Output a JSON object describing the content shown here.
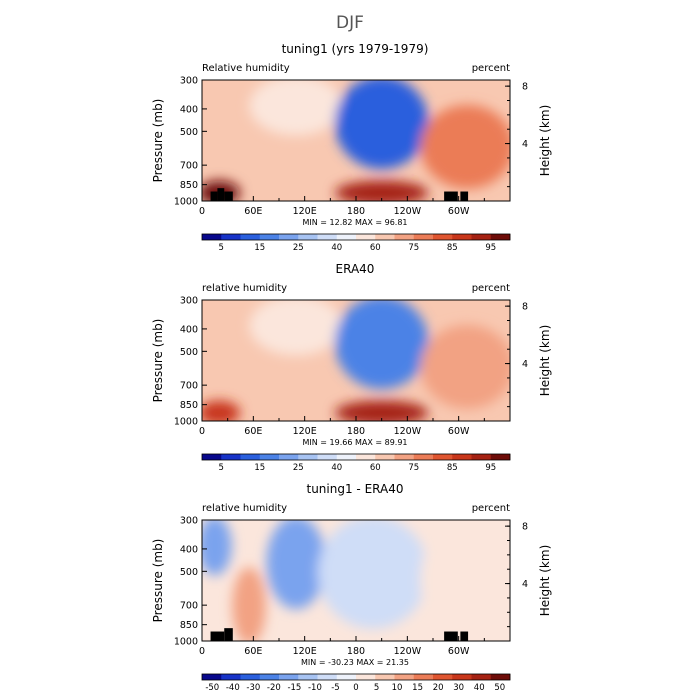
{
  "figure": {
    "title": "DJF"
  },
  "chart_data": [
    {
      "type": "heatmap",
      "title": "tuning1 (yrs 1979-1979)",
      "left_label": "Relative humidity",
      "right_label": "percent",
      "ylabel": "Pressure (mb)",
      "y2label": "Height (km)",
      "xticks": [
        "0",
        "60E",
        "120E",
        "180",
        "120W",
        "60W"
      ],
      "yticks": [
        "300",
        "400",
        "500",
        "700",
        "850",
        "1000"
      ],
      "y2ticks": [
        "8",
        "4"
      ],
      "stats": "MIN =   12.82   MAX =   96.81",
      "colorbar_labels": [
        "5",
        "15",
        "25",
        "40",
        "60",
        "75",
        "85",
        "95"
      ],
      "colorbar_colors": [
        "#08088c",
        "#1733c8",
        "#2a5fdd",
        "#4b82e6",
        "#7aa3ee",
        "#a7c3f2",
        "#cfddf7",
        "#eef2fb",
        "#fbe6dc",
        "#f8c8b1",
        "#f2a283",
        "#eb7c57",
        "#df5530",
        "#c8361a",
        "#a52112",
        "#6e0c08"
      ],
      "xlim": [
        0,
        360
      ],
      "ylim": [
        1000,
        300
      ],
      "scale": "diverging blue-red",
      "fields": [
        {
          "x": [
            0,
            40
          ],
          "y": [
            850,
            1000
          ],
          "value": 90
        },
        {
          "x": [
            60,
            160
          ],
          "y": [
            300,
            500
          ],
          "value": 50
        },
        {
          "x": [
            160,
            260
          ],
          "y": [
            300,
            700
          ],
          "value": 20
        },
        {
          "x": [
            160,
            260
          ],
          "y": [
            850,
            1000
          ],
          "value": 88
        },
        {
          "x": [
            260,
            360
          ],
          "y": [
            400,
            850
          ],
          "value": 70
        }
      ],
      "topography": [
        {
          "x": [
            10,
            18
          ],
          "y": [
            910,
            1000
          ]
        },
        {
          "x": [
            18,
            26
          ],
          "y": [
            880,
            1000
          ]
        },
        {
          "x": [
            26,
            36
          ],
          "y": [
            910,
            1000
          ]
        },
        {
          "x": [
            283,
            299
          ],
          "y": [
            910,
            1000
          ]
        },
        {
          "x": [
            302,
            311
          ],
          "y": [
            910,
            1000
          ]
        }
      ]
    },
    {
      "type": "heatmap",
      "title": "ERA40",
      "left_label": "relative humidity",
      "right_label": "percent",
      "ylabel": "Pressure (mb)",
      "y2label": "Height (km)",
      "xticks": [
        "0",
        "60E",
        "120E",
        "180",
        "120W",
        "60W"
      ],
      "yticks": [
        "300",
        "400",
        "500",
        "700",
        "850",
        "1000"
      ],
      "y2ticks": [
        "8",
        "4"
      ],
      "stats": "MIN =   19.66   MAX =   89.91",
      "colorbar_labels": [
        "5",
        "15",
        "25",
        "40",
        "60",
        "75",
        "85",
        "95"
      ],
      "colorbar_colors": [
        "#08088c",
        "#1733c8",
        "#2a5fdd",
        "#4b82e6",
        "#7aa3ee",
        "#a7c3f2",
        "#cfddf7",
        "#eef2fb",
        "#fbe6dc",
        "#f8c8b1",
        "#f2a283",
        "#eb7c57",
        "#df5530",
        "#c8361a",
        "#a52112",
        "#6e0c08"
      ],
      "xlim": [
        0,
        360
      ],
      "ylim": [
        1000,
        300
      ],
      "scale": "diverging blue-red",
      "fields": [
        {
          "x": [
            0,
            40
          ],
          "y": [
            850,
            1000
          ],
          "value": 80
        },
        {
          "x": [
            60,
            160
          ],
          "y": [
            300,
            500
          ],
          "value": 55
        },
        {
          "x": [
            160,
            260
          ],
          "y": [
            300,
            700
          ],
          "value": 25
        },
        {
          "x": [
            160,
            260
          ],
          "y": [
            850,
            1000
          ],
          "value": 85
        },
        {
          "x": [
            260,
            360
          ],
          "y": [
            400,
            850
          ],
          "value": 65
        }
      ],
      "topography": []
    },
    {
      "type": "heatmap",
      "title": "tuning1 - ERA40",
      "left_label": "relative humidity",
      "right_label": "percent",
      "ylabel": "Pressure (mb)",
      "y2label": "Height (km)",
      "xticks": [
        "0",
        "60E",
        "120E",
        "180",
        "120W",
        "60W"
      ],
      "yticks": [
        "300",
        "400",
        "500",
        "700",
        "850",
        "1000"
      ],
      "y2ticks": [
        "8",
        "4"
      ],
      "stats": "MIN =  -30.23   MAX =   21.35",
      "colorbar_labels": [
        "-50",
        "-40",
        "-30",
        "-20",
        "-15",
        "-10",
        "-5",
        "0",
        "5",
        "10",
        "15",
        "20",
        "30",
        "40",
        "50"
      ],
      "colorbar_colors": [
        "#08088c",
        "#1733c8",
        "#2a5fdd",
        "#4b82e6",
        "#7aa3ee",
        "#a7c3f2",
        "#cfddf7",
        "#eef2fb",
        "#fbe6dc",
        "#f8c8b1",
        "#f2a283",
        "#eb7c57",
        "#df5530",
        "#c8361a",
        "#a52112",
        "#6e0c08"
      ],
      "xlim": [
        0,
        360
      ],
      "ylim": [
        1000,
        300
      ],
      "scale": "diverging blue-red",
      "fields": [
        {
          "x": [
            0,
            30
          ],
          "y": [
            300,
            500
          ],
          "value": -25
        },
        {
          "x": [
            40,
            70
          ],
          "y": [
            500,
            1000
          ],
          "value": 15
        },
        {
          "x": [
            80,
            140
          ],
          "y": [
            300,
            700
          ],
          "value": -25
        },
        {
          "x": [
            140,
            260
          ],
          "y": [
            300,
            850
          ],
          "value": -8
        },
        {
          "x": [
            260,
            360
          ],
          "y": [
            300,
            1000
          ],
          "value": 3
        }
      ],
      "topography": [
        {
          "x": [
            10,
            26
          ],
          "y": [
            910,
            1000
          ]
        },
        {
          "x": [
            26,
            36
          ],
          "y": [
            880,
            1000
          ]
        },
        {
          "x": [
            283,
            299
          ],
          "y": [
            910,
            1000
          ]
        },
        {
          "x": [
            302,
            311
          ],
          "y": [
            910,
            1000
          ]
        }
      ]
    }
  ]
}
